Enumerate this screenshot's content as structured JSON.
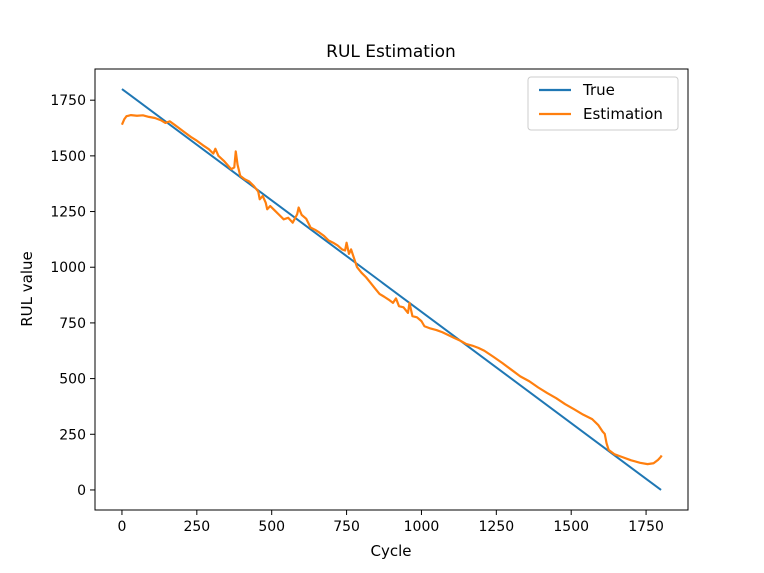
{
  "chart_data": {
    "type": "line",
    "title": "RUL Estimation",
    "xlabel": "Cycle",
    "ylabel": "RUL value",
    "xlim": [
      -90,
      1890
    ],
    "ylim": [
      -90,
      1890
    ],
    "xticks": [
      0,
      250,
      500,
      750,
      1000,
      1250,
      1500,
      1750
    ],
    "yticks": [
      0,
      250,
      500,
      750,
      1000,
      1250,
      1500,
      1750
    ],
    "grid": false,
    "legend_position": "top-right",
    "series": [
      {
        "name": "True",
        "color": "#1f77b4",
        "points": [
          [
            0,
            1800
          ],
          [
            1800,
            0
          ]
        ]
      },
      {
        "name": "Estimation",
        "color": "#ff7f0e",
        "points": [
          [
            0,
            1640
          ],
          [
            8,
            1665
          ],
          [
            15,
            1678
          ],
          [
            30,
            1683
          ],
          [
            50,
            1680
          ],
          [
            70,
            1682
          ],
          [
            90,
            1675
          ],
          [
            110,
            1670
          ],
          [
            130,
            1660
          ],
          [
            145,
            1648
          ],
          [
            160,
            1655
          ],
          [
            175,
            1640
          ],
          [
            190,
            1625
          ],
          [
            210,
            1605
          ],
          [
            230,
            1585
          ],
          [
            250,
            1568
          ],
          [
            270,
            1548
          ],
          [
            290,
            1530
          ],
          [
            305,
            1510
          ],
          [
            312,
            1532
          ],
          [
            322,
            1500
          ],
          [
            340,
            1478
          ],
          [
            355,
            1455
          ],
          [
            365,
            1440
          ],
          [
            375,
            1448
          ],
          [
            380,
            1520
          ],
          [
            386,
            1460
          ],
          [
            395,
            1410
          ],
          [
            410,
            1395
          ],
          [
            425,
            1385
          ],
          [
            440,
            1365
          ],
          [
            455,
            1340
          ],
          [
            460,
            1305
          ],
          [
            470,
            1320
          ],
          [
            480,
            1290
          ],
          [
            485,
            1260
          ],
          [
            495,
            1275
          ],
          [
            510,
            1255
          ],
          [
            525,
            1235
          ],
          [
            540,
            1215
          ],
          [
            555,
            1222
          ],
          [
            570,
            1200
          ],
          [
            585,
            1238
          ],
          [
            590,
            1268
          ],
          [
            600,
            1235
          ],
          [
            615,
            1218
          ],
          [
            630,
            1178
          ],
          [
            645,
            1168
          ],
          [
            660,
            1155
          ],
          [
            675,
            1140
          ],
          [
            690,
            1120
          ],
          [
            705,
            1110
          ],
          [
            720,
            1098
          ],
          [
            735,
            1080
          ],
          [
            745,
            1075
          ],
          [
            750,
            1110
          ],
          [
            758,
            1060
          ],
          [
            765,
            1080
          ],
          [
            775,
            1040
          ],
          [
            785,
            1000
          ],
          [
            800,
            975
          ],
          [
            815,
            955
          ],
          [
            830,
            930
          ],
          [
            845,
            905
          ],
          [
            860,
            880
          ],
          [
            875,
            868
          ],
          [
            890,
            855
          ],
          [
            905,
            840
          ],
          [
            915,
            860
          ],
          [
            925,
            825
          ],
          [
            940,
            820
          ],
          [
            955,
            795
          ],
          [
            960,
            840
          ],
          [
            970,
            780
          ],
          [
            985,
            775
          ],
          [
            1000,
            758
          ],
          [
            1010,
            735
          ],
          [
            1030,
            725
          ],
          [
            1050,
            718
          ],
          [
            1070,
            708
          ],
          [
            1090,
            695
          ],
          [
            1110,
            682
          ],
          [
            1130,
            670
          ],
          [
            1150,
            655
          ],
          [
            1170,
            648
          ],
          [
            1190,
            638
          ],
          [
            1210,
            625
          ],
          [
            1240,
            598
          ],
          [
            1270,
            570
          ],
          [
            1300,
            540
          ],
          [
            1330,
            510
          ],
          [
            1360,
            488
          ],
          [
            1390,
            460
          ],
          [
            1420,
            435
          ],
          [
            1450,
            412
          ],
          [
            1480,
            385
          ],
          [
            1510,
            362
          ],
          [
            1540,
            338
          ],
          [
            1570,
            318
          ],
          [
            1590,
            292
          ],
          [
            1605,
            262
          ],
          [
            1612,
            252
          ],
          [
            1618,
            210
          ],
          [
            1625,
            180
          ],
          [
            1645,
            160
          ],
          [
            1670,
            148
          ],
          [
            1700,
            133
          ],
          [
            1730,
            122
          ],
          [
            1755,
            116
          ],
          [
            1775,
            120
          ],
          [
            1790,
            135
          ],
          [
            1800,
            150
          ],
          [
            1802,
            155
          ]
        ]
      }
    ]
  }
}
